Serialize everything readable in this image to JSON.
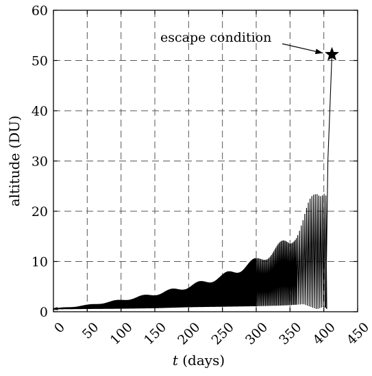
{
  "chart_data": {
    "type": "line",
    "title": "",
    "xlabel_var": "t",
    "xlabel_unit": " (days)",
    "ylabel": "altitude (DU)",
    "xlim": [
      0,
      450
    ],
    "ylim": [
      0,
      60
    ],
    "xticks": [
      0,
      50,
      100,
      150,
      200,
      250,
      300,
      350,
      400,
      450
    ],
    "yticks": [
      0,
      10,
      20,
      30,
      40,
      50,
      60
    ],
    "grid": true,
    "grid_style": "dashed",
    "series": [
      {
        "envelope": {
          "t": [
            0,
            50,
            100,
            150,
            200,
            250,
            300,
            330,
            350,
            370,
            390,
            400,
            405
          ],
          "lower": [
            0.5,
            0.55,
            0.6,
            0.7,
            0.9,
            1.0,
            1.1,
            1.2,
            1.3,
            1.5,
            0.5,
            1.0,
            0.5
          ],
          "upper": [
            0.6,
            1.3,
            2.3,
            3.5,
            5.0,
            7.0,
            10.0,
            12.5,
            14.0,
            18.0,
            24.0,
            25.5,
            24.0
          ]
        },
        "escape_path": {
          "t": [
            403,
            406,
            408,
            410,
            412
          ],
          "alt": [
            1,
            30,
            37,
            44,
            51.2
          ]
        },
        "color": "#000000"
      }
    ],
    "annotations": [
      {
        "text": "escape condition",
        "marker": "star",
        "point": {
          "t": 412,
          "alt": 51.2
        }
      }
    ]
  }
}
